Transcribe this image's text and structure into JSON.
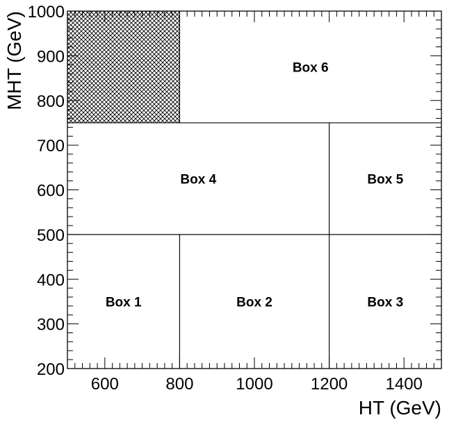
{
  "chart_data": {
    "type": "diagram-regions",
    "xlabel": "HT (GeV)",
    "ylabel": "MHT (GeV)",
    "xlim": [
      500,
      1500
    ],
    "ylim": [
      200,
      1000
    ],
    "x_ticks": [
      600,
      800,
      1000,
      1200,
      1400
    ],
    "y_ticks": [
      200,
      300,
      400,
      500,
      600,
      700,
      800,
      900,
      1000
    ],
    "x_minor_step": 20,
    "y_minor_step": 20,
    "regions": [
      {
        "name": "Box 1",
        "x": [
          500,
          800
        ],
        "y": [
          200,
          500
        ]
      },
      {
        "name": "Box 2",
        "x": [
          800,
          1200
        ],
        "y": [
          200,
          500
        ]
      },
      {
        "name": "Box 3",
        "x": [
          1200,
          1500
        ],
        "y": [
          200,
          500
        ]
      },
      {
        "name": "Box 4",
        "x": [
          500,
          1200
        ],
        "y": [
          500,
          750
        ]
      },
      {
        "name": "Box 5",
        "x": [
          1200,
          1500
        ],
        "y": [
          500,
          750
        ]
      },
      {
        "name": "Box 6",
        "x": [
          800,
          1500
        ],
        "y": [
          750,
          1000
        ]
      }
    ],
    "excluded_region": {
      "x": [
        500,
        800
      ],
      "y": [
        750,
        1000
      ],
      "fill": "crosshatch"
    },
    "colors": {
      "lines": "#000000",
      "background": "#ffffff"
    }
  }
}
